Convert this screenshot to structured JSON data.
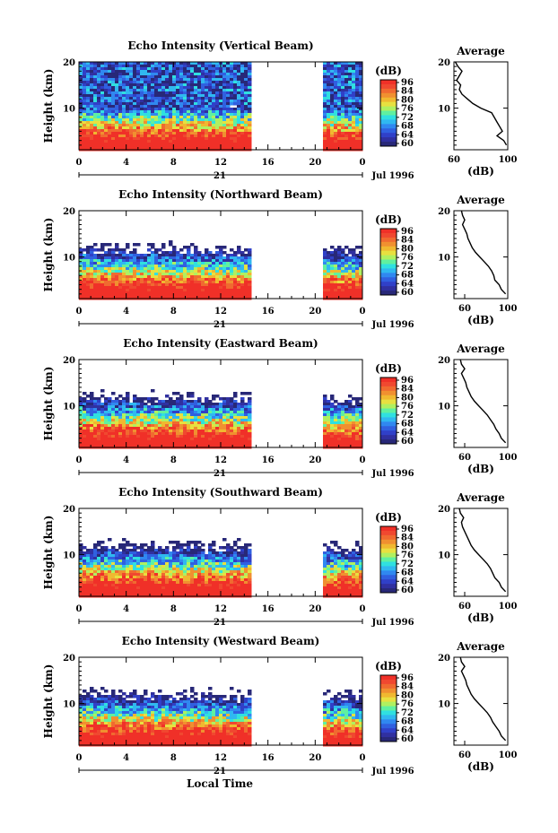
{
  "figure": {
    "xlabel_bottom": "Local Time",
    "date_label": "Jul 1996",
    "day_label": "21"
  },
  "colorbar": {
    "unit_label": "(dB)",
    "ticks": [
      "96",
      "84",
      "80",
      "76",
      "72",
      "68",
      "64",
      "60"
    ],
    "colors": [
      "#f03028",
      "#f04830",
      "#f06a30",
      "#f09030",
      "#f0b830",
      "#e8e040",
      "#b0f060",
      "#60f0a0",
      "#30e0e0",
      "#30b8f0",
      "#3088f0",
      "#3060e0",
      "#3040c8",
      "#3030a0",
      "#282878"
    ]
  },
  "chart_data": [
    {
      "type": "heatmap",
      "title": "Echo Intensity (Vertical Beam)",
      "ylabel": "Height (km)",
      "x_ticks": [
        "0",
        "4",
        "8",
        "12",
        "16",
        "20",
        "0"
      ],
      "y_ticks": [
        "20",
        "10"
      ],
      "xlim": [
        0,
        24
      ],
      "ylim": [
        1,
        20
      ],
      "data_gap_hours": [
        14.5,
        20.6
      ],
      "colorbar_range_db": [
        60,
        96
      ],
      "profile": {
        "title": "Average",
        "xlabel": "(dB)",
        "x_ticks": [
          "60",
          "100"
        ],
        "xlim": [
          60,
          100
        ],
        "height_km": [
          2,
          3,
          4,
          5,
          6,
          7,
          8,
          9,
          10,
          11,
          12,
          13,
          14,
          15,
          16,
          17,
          18,
          19,
          20
        ],
        "db": [
          99,
          97,
          92,
          96,
          94,
          92,
          90,
          88,
          80,
          74,
          70,
          66,
          64,
          65,
          62,
          64,
          66,
          63,
          61
        ]
      }
    },
    {
      "type": "heatmap",
      "title": "Echo Intensity (Northward Beam)",
      "ylabel": "Height (km)",
      "x_ticks": [
        "0",
        "4",
        "8",
        "12",
        "16",
        "20",
        "0"
      ],
      "y_ticks": [
        "20",
        "10"
      ],
      "xlim": [
        0,
        24
      ],
      "ylim": [
        1,
        20
      ],
      "data_gap_hours": [
        14.5,
        20.6
      ],
      "colorbar_range_db": [
        60,
        96
      ],
      "profile": {
        "title": "Average",
        "xlabel": "(dB)",
        "x_ticks": [
          "60",
          "100"
        ],
        "xlim": [
          50,
          100
        ],
        "height_km": [
          2,
          3,
          4,
          5,
          6,
          7,
          8,
          9,
          10,
          11,
          12,
          13,
          14,
          15,
          16,
          17,
          18,
          19,
          20
        ],
        "db": [
          98,
          94,
          92,
          88,
          87,
          85,
          82,
          78,
          74,
          70,
          67,
          65,
          63,
          62,
          60,
          58,
          60,
          58,
          57
        ]
      }
    },
    {
      "type": "heatmap",
      "title": "Echo Intensity (Eastward Beam)",
      "ylabel": "Height (km)",
      "x_ticks": [
        "0",
        "4",
        "8",
        "12",
        "16",
        "20",
        "0"
      ],
      "y_ticks": [
        "20",
        "10"
      ],
      "xlim": [
        0,
        24
      ],
      "ylim": [
        1,
        20
      ],
      "data_gap_hours": [
        14.5,
        20.6
      ],
      "colorbar_range_db": [
        60,
        96
      ],
      "profile": {
        "title": "Average",
        "xlabel": "(dB)",
        "x_ticks": [
          "60",
          "100"
        ],
        "xlim": [
          50,
          100
        ],
        "height_km": [
          2,
          3,
          4,
          5,
          6,
          7,
          8,
          9,
          10,
          11,
          12,
          13,
          14,
          15,
          16,
          17,
          18,
          19,
          20
        ],
        "db": [
          98,
          94,
          92,
          89,
          87,
          84,
          81,
          77,
          73,
          69,
          66,
          64,
          62,
          61,
          59,
          57,
          60,
          57,
          56
        ]
      }
    },
    {
      "type": "heatmap",
      "title": "Echo Intensity (Southward Beam)",
      "ylabel": "Height (km)",
      "x_ticks": [
        "0",
        "4",
        "8",
        "12",
        "16",
        "20",
        "0"
      ],
      "y_ticks": [
        "20",
        "10"
      ],
      "xlim": [
        0,
        24
      ],
      "ylim": [
        1,
        20
      ],
      "data_gap_hours": [
        14.5,
        20.6
      ],
      "colorbar_range_db": [
        60,
        96
      ],
      "profile": {
        "title": "Average",
        "xlabel": "(dB)",
        "x_ticks": [
          "60",
          "100"
        ],
        "xlim": [
          50,
          100
        ],
        "height_km": [
          2,
          3,
          4,
          5,
          6,
          7,
          8,
          9,
          10,
          11,
          12,
          13,
          14,
          15,
          16,
          17,
          18,
          19,
          20
        ],
        "db": [
          98,
          94,
          92,
          88,
          86,
          84,
          81,
          77,
          73,
          69,
          66,
          64,
          62,
          60,
          58,
          57,
          59,
          56,
          55
        ]
      }
    },
    {
      "type": "heatmap",
      "title": "Echo Intensity (Westward Beam)",
      "ylabel": "Height (km)",
      "x_ticks": [
        "0",
        "4",
        "8",
        "12",
        "16",
        "20",
        "0"
      ],
      "y_ticks": [
        "20",
        "10"
      ],
      "xlim": [
        0,
        24
      ],
      "ylim": [
        1,
        20
      ],
      "data_gap_hours": [
        14.5,
        20.6
      ],
      "colorbar_range_db": [
        60,
        96
      ],
      "profile": {
        "title": "Average",
        "xlabel": "(dB)",
        "x_ticks": [
          "60",
          "100"
        ],
        "xlim": [
          50,
          100
        ],
        "height_km": [
          2,
          3,
          4,
          5,
          6,
          7,
          8,
          9,
          10,
          11,
          12,
          13,
          14,
          15,
          16,
          17,
          18,
          19,
          20
        ],
        "db": [
          98,
          94,
          92,
          89,
          86,
          84,
          81,
          77,
          73,
          69,
          66,
          64,
          62,
          61,
          59,
          57,
          60,
          57,
          56
        ]
      }
    }
  ]
}
